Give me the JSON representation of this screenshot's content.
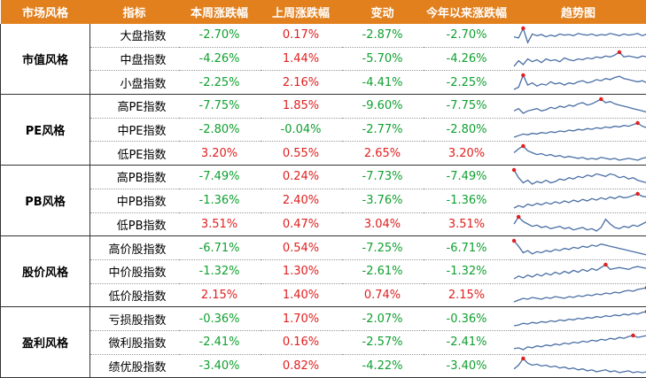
{
  "headers": [
    "市场风格",
    "指标",
    "本周涨跌幅",
    "上周涨跌幅",
    "变动",
    "今年以来涨跌幅",
    "趋势图"
  ],
  "colors": {
    "header_bg": "#e2801e",
    "positive": "#e02020",
    "negative": "#10a030",
    "sparkline": "#4a6fa5",
    "marker": "#e02020"
  },
  "groups": [
    {
      "style": "市值风格",
      "rows": [
        {
          "name": "大盘指数",
          "this_week": "-2.70%",
          "last_week": "0.17%",
          "change": "-2.87%",
          "ytd": "-2.70%",
          "spark": [
            40,
            38,
            55,
            30,
            45,
            42,
            44,
            40,
            43,
            41,
            45,
            43,
            44,
            42,
            46,
            44,
            43,
            45,
            42,
            44,
            43,
            46,
            44,
            42,
            45,
            43,
            44,
            46,
            42,
            45
          ]
        },
        {
          "name": "中盘指数",
          "this_week": "-4.26%",
          "last_week": "1.44%",
          "change": "-5.70%",
          "ytd": "-4.26%",
          "spark": [
            30,
            36,
            32,
            38,
            35,
            37,
            34,
            38,
            36,
            37,
            35,
            39,
            37,
            36,
            38,
            37,
            39,
            38,
            40,
            39,
            41,
            40,
            42,
            45,
            40,
            41,
            40,
            39,
            41,
            40
          ]
        },
        {
          "name": "小盘指数",
          "this_week": "-2.25%",
          "last_week": "2.16%",
          "change": "-4.41%",
          "ytd": "-2.25%",
          "spark": [
            32,
            34,
            45,
            36,
            38,
            35,
            37,
            36,
            39,
            37,
            38,
            36,
            38,
            37,
            39,
            40,
            38,
            39,
            41,
            40,
            42,
            41,
            43,
            44,
            42,
            41,
            40,
            39,
            40,
            38
          ]
        }
      ]
    },
    {
      "style": "PE风格",
      "rows": [
        {
          "name": "高PE指数",
          "this_week": "-7.75%",
          "last_week": "1.85%",
          "change": "-9.60%",
          "ytd": "-7.75%",
          "spark": [
            36,
            38,
            34,
            36,
            37,
            38,
            36,
            37,
            39,
            38,
            40,
            39,
            41,
            40,
            42,
            43,
            41,
            42,
            44,
            46,
            43,
            44,
            42,
            41,
            40,
            39,
            38,
            37,
            36,
            35
          ]
        },
        {
          "name": "中PE指数",
          "this_week": "-2.80%",
          "last_week": "-0.04%",
          "change": "-2.77%",
          "ytd": "-2.80%",
          "spark": [
            30,
            32,
            34,
            33,
            35,
            34,
            36,
            35,
            37,
            36,
            38,
            37,
            39,
            38,
            40,
            39,
            41,
            40,
            42,
            41,
            43,
            42,
            44,
            43,
            45,
            44,
            46,
            48,
            44,
            42
          ]
        },
        {
          "name": "低PE指数",
          "this_week": "3.20%",
          "last_week": "0.55%",
          "change": "2.65%",
          "ytd": "3.20%",
          "spark": [
            38,
            42,
            45,
            40,
            38,
            36,
            37,
            35,
            36,
            34,
            35,
            33,
            34,
            33,
            32,
            33,
            31,
            32,
            31,
            33,
            32,
            31,
            32,
            30,
            31,
            32,
            31,
            30,
            32,
            33
          ]
        }
      ]
    },
    {
      "style": "PB风格",
      "rows": [
        {
          "name": "高PB指数",
          "this_week": "-7.49%",
          "last_week": "0.24%",
          "change": "-7.73%",
          "ytd": "-7.49%",
          "spark": [
            46,
            40,
            36,
            38,
            35,
            37,
            36,
            38,
            36,
            37,
            39,
            38,
            40,
            39,
            41,
            40,
            42,
            41,
            43,
            42,
            41,
            43,
            42,
            40,
            41,
            39,
            40,
            38,
            37,
            36
          ]
        },
        {
          "name": "中PB指数",
          "this_week": "-1.36%",
          "last_week": "2.40%",
          "change": "-3.76%",
          "ytd": "-1.36%",
          "spark": [
            30,
            33,
            31,
            35,
            33,
            36,
            34,
            37,
            35,
            38,
            36,
            39,
            37,
            40,
            38,
            41,
            39,
            42,
            40,
            43,
            41,
            44,
            42,
            45,
            43,
            44,
            46,
            48,
            45,
            44
          ]
        },
        {
          "name": "低PB指数",
          "this_week": "3.51%",
          "last_week": "0.47%",
          "change": "3.04%",
          "ytd": "3.51%",
          "spark": [
            36,
            42,
            38,
            36,
            34,
            35,
            33,
            34,
            32,
            33,
            34,
            32,
            33,
            31,
            32,
            33,
            31,
            32,
            30,
            33,
            40,
            36,
            33,
            32,
            34,
            33,
            35,
            34,
            36,
            38
          ]
        }
      ]
    },
    {
      "style": "股价风格",
      "rows": [
        {
          "name": "高价股指数",
          "this_week": "-6.71%",
          "last_week": "0.54%",
          "change": "-7.25%",
          "ytd": "-6.71%",
          "spark": [
            47,
            42,
            36,
            38,
            35,
            37,
            36,
            38,
            37,
            39,
            38,
            40,
            39,
            41,
            40,
            42,
            41,
            43,
            42,
            44,
            43,
            42,
            41,
            40,
            39,
            38,
            37,
            36,
            35,
            34
          ]
        },
        {
          "name": "中价股指数",
          "this_week": "-1.32%",
          "last_week": "1.30%",
          "change": "-2.61%",
          "ytd": "-1.32%",
          "spark": [
            30,
            33,
            31,
            34,
            32,
            35,
            33,
            36,
            34,
            37,
            35,
            38,
            36,
            39,
            37,
            40,
            38,
            41,
            39,
            42,
            45,
            40,
            41,
            42,
            41,
            40,
            42,
            43,
            42,
            41
          ]
        },
        {
          "name": "低价股指数",
          "this_week": "2.15%",
          "last_week": "1.40%",
          "change": "0.74%",
          "ytd": "2.15%",
          "spark": [
            30,
            32,
            34,
            33,
            35,
            34,
            33,
            35,
            34,
            36,
            35,
            34,
            36,
            35,
            37,
            36,
            38,
            37,
            39,
            38,
            40,
            39,
            41,
            40,
            42,
            43,
            42,
            44,
            45,
            46
          ]
        }
      ]
    },
    {
      "style": "盈利风格",
      "rows": [
        {
          "name": "亏损股指数",
          "this_week": "-0.36%",
          "last_week": "1.70%",
          "change": "-2.07%",
          "ytd": "-0.36%",
          "spark": [
            30,
            31,
            33,
            32,
            34,
            33,
            35,
            34,
            36,
            35,
            37,
            36,
            38,
            37,
            39,
            38,
            40,
            39,
            41,
            40,
            42,
            41,
            43,
            42,
            44,
            43,
            45,
            44,
            46,
            47
          ]
        },
        {
          "name": "微利股指数",
          "this_week": "-2.41%",
          "last_week": "0.16%",
          "change": "-2.57%",
          "ytd": "-2.41%",
          "spark": [
            32,
            33,
            31,
            34,
            33,
            35,
            34,
            36,
            35,
            37,
            36,
            38,
            37,
            39,
            38,
            40,
            39,
            41,
            40,
            42,
            41,
            43,
            42,
            44,
            43,
            45,
            46,
            44,
            45,
            46
          ]
        },
        {
          "name": "绩优股指数",
          "this_week": "-3.40%",
          "last_week": "0.82%",
          "change": "-4.22%",
          "ytd": "-3.40%",
          "spark": [
            34,
            38,
            45,
            40,
            38,
            39,
            37,
            38,
            36,
            37,
            35,
            36,
            34,
            35,
            33,
            34,
            32,
            33,
            31,
            32,
            33,
            31,
            32,
            30,
            31,
            32,
            30,
            31,
            30,
            31
          ]
        }
      ]
    }
  ]
}
